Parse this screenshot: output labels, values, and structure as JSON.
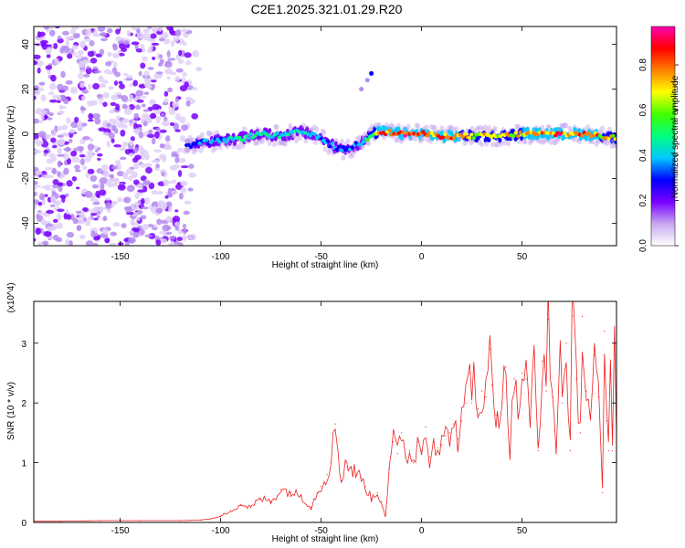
{
  "title": "C2E1.2025.321.01.29.R20",
  "chart_data": [
    {
      "type": "heatmap",
      "title": "C2E1.2025.321.01.29.R20",
      "xlabel": "Height of straight line (km)",
      "ylabel": "Frequency (Hz)",
      "xlim": [
        -193,
        97
      ],
      "ylim": [
        -50,
        48
      ],
      "xticks": [
        -150,
        -100,
        -50,
        0,
        50
      ],
      "xtick_labels": [
        "-150",
        "-100",
        "-50",
        "0",
        "50"
      ],
      "yticks": [
        -40,
        -20,
        0,
        20,
        40
      ],
      "ytick_labels": [
        "-40",
        "-20",
        "0",
        "20",
        "40"
      ],
      "colorbar": {
        "label": "Normalized spectral amplitude",
        "range": [
          0,
          0.97
        ],
        "ticks": [
          0.0,
          0.2,
          0.4,
          0.6,
          0.8
        ],
        "tick_labels": [
          "0.0",
          "0.2",
          "0.4",
          "0.6",
          "0.8"
        ],
        "colors": [
          "#ffffff",
          "#c8a8f0",
          "#7a00ff",
          "#0000ff",
          "#00c8ff",
          "#00ff80",
          "#40ff00",
          "#ffff00",
          "#ff8000",
          "#ff0000",
          "#ff00b0"
        ]
      },
      "noise_region_x": [
        -193,
        -110
      ],
      "ridge": {
        "x": [
          -117,
          -110,
          -100,
          -90,
          -80,
          -70,
          -60,
          -50,
          -45,
          -40,
          -35,
          -30,
          -27,
          -25,
          -20,
          -10,
          0,
          10,
          20,
          30,
          40,
          50,
          60,
          70,
          80,
          90,
          97
        ],
        "y": [
          -6,
          -4,
          -3,
          -2,
          0,
          -1,
          1,
          -2,
          -5,
          -7,
          -6,
          -4,
          -2,
          0,
          1,
          0,
          0,
          -1,
          -1,
          -1,
          -1,
          0,
          0,
          0,
          0,
          -1,
          -2
        ],
        "amplitude": [
          0.3,
          0.35,
          0.4,
          0.45,
          0.45,
          0.45,
          0.45,
          0.4,
          0.35,
          0.35,
          0.35,
          0.4,
          0.5,
          0.6,
          0.85,
          0.9,
          0.85,
          0.8,
          0.75,
          0.7,
          0.72,
          0.75,
          0.8,
          0.85,
          0.8,
          0.75,
          0.7
        ]
      },
      "streak": {
        "x": [
          -30,
          -27,
          -25
        ],
        "y": [
          20,
          24,
          27
        ]
      }
    },
    {
      "type": "line",
      "xlabel": "Height of straight line (km)",
      "ylabel": "SNR (10 * v/v)",
      "yscale_label": "(x10^4)",
      "xlim": [
        -193,
        97
      ],
      "ylim": [
        0,
        3.7
      ],
      "xticks": [
        -150,
        -100,
        -50,
        0,
        50
      ],
      "xtick_labels": [
        "-150",
        "-100",
        "-50",
        "0",
        "50"
      ],
      "yticks": [
        0,
        1,
        2,
        3
      ],
      "ytick_labels": [
        "0",
        "1",
        "2",
        "3"
      ],
      "line_color": "#ee2222",
      "series": [
        {
          "name": "SNR",
          "x": [
            -193,
            -180,
            -160,
            -140,
            -120,
            -110,
            -105,
            -100,
            -95,
            -90,
            -85,
            -80,
            -75,
            -70,
            -65,
            -60,
            -55,
            -52,
            -50,
            -47,
            -45,
            -43,
            -40,
            -38,
            -35,
            -32,
            -30,
            -28,
            -25,
            -22,
            -20,
            -18,
            -16,
            -14,
            -12,
            -10,
            -8,
            -6,
            -4,
            -2,
            0,
            2,
            4,
            6,
            8,
            10,
            12,
            14,
            16,
            18,
            20,
            22,
            24,
            25,
            26,
            28,
            30,
            32,
            34,
            35,
            37,
            40,
            42,
            44,
            46,
            48,
            50,
            52,
            54,
            56,
            58,
            60,
            62,
            63,
            65,
            67,
            69,
            70,
            72,
            74,
            75,
            77,
            79,
            80,
            82,
            84,
            86,
            88,
            90,
            91,
            92,
            93,
            94,
            95,
            96,
            97
          ],
          "values": [
            0.02,
            0.02,
            0.03,
            0.03,
            0.03,
            0.04,
            0.06,
            0.1,
            0.2,
            0.3,
            0.25,
            0.4,
            0.35,
            0.55,
            0.5,
            0.45,
            0.25,
            0.5,
            0.6,
            0.8,
            1.0,
            1.65,
            0.7,
            1.0,
            0.9,
            0.8,
            0.75,
            0.6,
            0.4,
            0.5,
            0.35,
            0.1,
            0.9,
            1.35,
            1.15,
            1.5,
            1.1,
            1.2,
            1.0,
            1.35,
            1.2,
            1.6,
            1.1,
            1.4,
            1.25,
            1.3,
            1.45,
            1.5,
            1.65,
            1.4,
            1.7,
            2.0,
            2.5,
            2.0,
            2.6,
            1.9,
            2.2,
            2.1,
            2.9,
            2.3,
            1.8,
            2.0,
            2.6,
            1.2,
            2.4,
            1.8,
            2.5,
            2.4,
            1.6,
            2.8,
            1.2,
            2.7,
            2.2,
            3.4,
            2.1,
            1.3,
            2.9,
            2.0,
            3.0,
            1.2,
            3.45,
            2.4,
            1.5,
            3.45,
            2.2,
            1.8,
            2.8,
            2.1,
            0.5,
            3.2,
            1.7,
            1.2,
            2.6,
            1.2,
            3.7,
            1.4
          ]
        }
      ]
    }
  ]
}
